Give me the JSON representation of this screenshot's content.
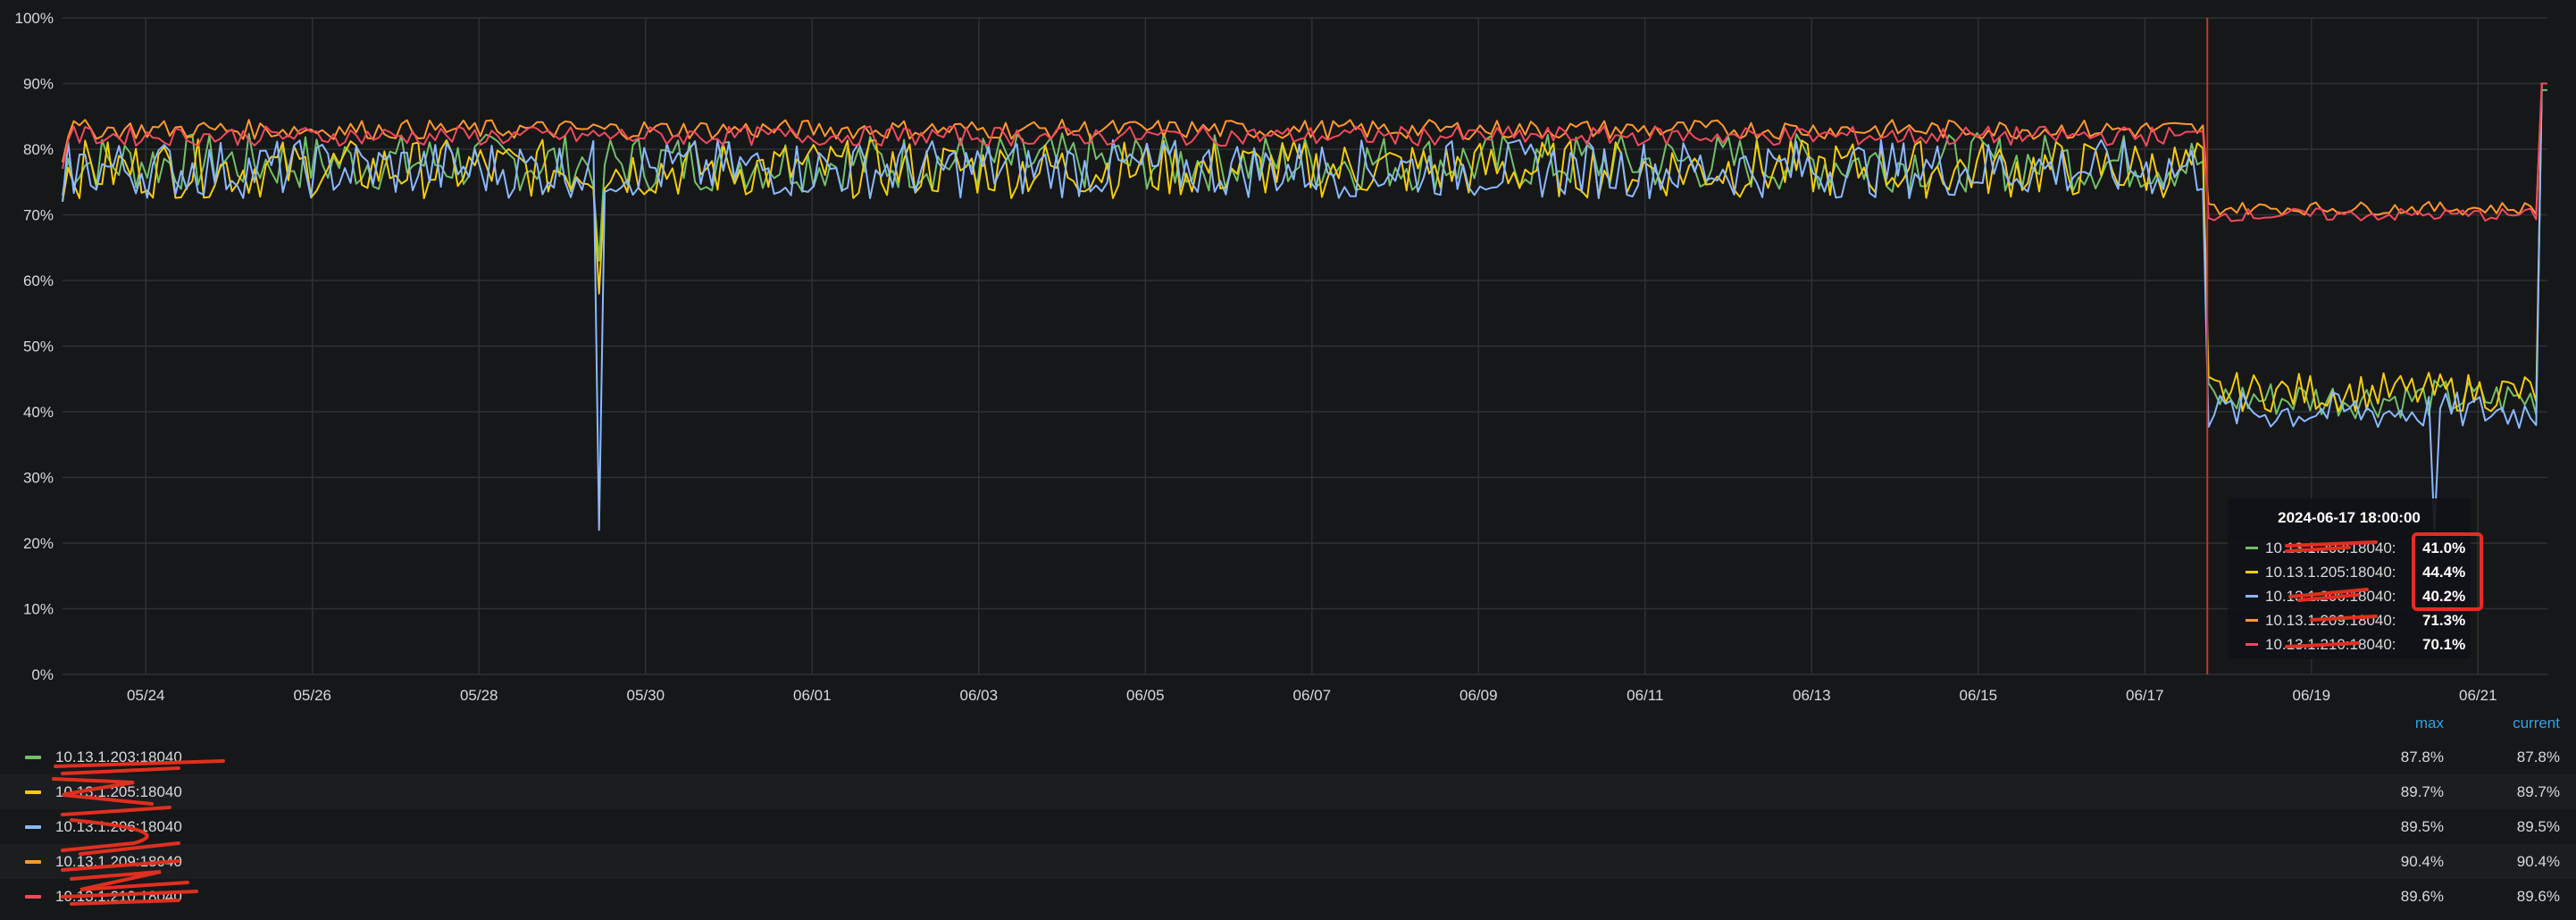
{
  "chart_data": {
    "type": "line",
    "y_ticks": [
      "0%",
      "10%",
      "20%",
      "30%",
      "40%",
      "50%",
      "60%",
      "70%",
      "80%",
      "90%",
      "100%"
    ],
    "x_ticks": [
      "05/24",
      "05/26",
      "05/28",
      "05/30",
      "06/01",
      "06/03",
      "06/05",
      "06/07",
      "06/09",
      "06/11",
      "06/13",
      "06/15",
      "06/17",
      "06/19",
      "06/21"
    ],
    "x_range": [
      "2024-05-23 00:00",
      "2024-06-21 20:00"
    ],
    "ylim": [
      0,
      100
    ],
    "grid": true,
    "cursor_time": "2024-06-17 18:00",
    "series": [
      {
        "name": "10.13.1.203:18040",
        "color": "#73bf69",
        "before": 78,
        "after": 42,
        "end": 89,
        "spike_min": 63
      },
      {
        "name": "10.13.1.205:18040",
        "color": "#f2cc0c",
        "before": 77,
        "after": 43,
        "end": 90,
        "spike_min": 58
      },
      {
        "name": "10.13.1.206:18040",
        "color": "#8ab8ff",
        "before": 77,
        "after": 40,
        "end": 90,
        "spike_min": 22
      },
      {
        "name": "10.13.1.209:18040",
        "color": "#ff9830",
        "before": 83,
        "after": 71,
        "end": 90,
        "spike_min": 76
      },
      {
        "name": "10.13.1.210:18040",
        "color": "#f2495c",
        "before": 82,
        "after": 70,
        "end": 90,
        "spike_min": 76
      }
    ]
  },
  "tooltip": {
    "time": "2024-06-17 18:00:00",
    "rows": [
      {
        "name": "10.13.1.203:18040:",
        "value": "41.0%",
        "color": "#73bf69"
      },
      {
        "name": "10.13.1.205:18040:",
        "value": "44.4%",
        "color": "#f2cc0c"
      },
      {
        "name": "10.13.1.206:18040:",
        "value": "40.2%",
        "color": "#8ab8ff"
      },
      {
        "name": "10.13.1.209:18040:",
        "value": "71.3%",
        "color": "#ff9830"
      },
      {
        "name": "10.13.1.210:18040:",
        "value": "70.1%",
        "color": "#f2495c"
      }
    ]
  },
  "legend": {
    "max_header": "max",
    "current_header": "current",
    "rows": [
      {
        "name": "10.13.1.203:18040",
        "max": "87.8%",
        "current": "87.8%",
        "color": "#73bf69"
      },
      {
        "name": "10.13.1.205:18040",
        "max": "89.7%",
        "current": "89.7%",
        "color": "#f2cc0c"
      },
      {
        "name": "10.13.1.206:18040",
        "max": "89.5%",
        "current": "89.5%",
        "color": "#8ab8ff"
      },
      {
        "name": "10.13.1.209:18040",
        "max": "90.4%",
        "current": "90.4%",
        "color": "#ff9830"
      },
      {
        "name": "10.13.1.210:18040",
        "max": "89.6%",
        "current": "89.6%",
        "color": "#f2495c"
      }
    ]
  },
  "annotation_color": "#e02f1f"
}
